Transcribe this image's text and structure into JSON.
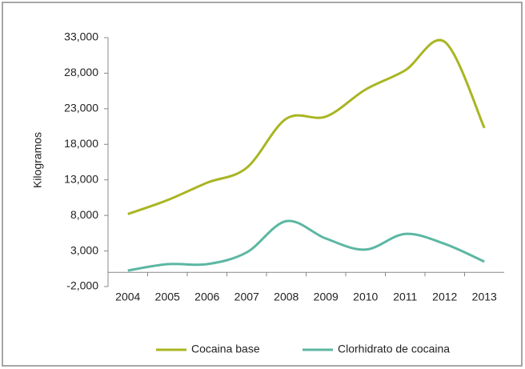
{
  "chart_data": {
    "type": "line",
    "y_label": "Kilogramos",
    "categories": [
      "2004",
      "2005",
      "2006",
      "2007",
      "2008",
      "2009",
      "2010",
      "2011",
      "2012",
      "2013"
    ],
    "series": [
      {
        "name": "Cocaina base",
        "color": "#a9b522",
        "values": [
          8200,
          10150,
          12600,
          14700,
          21600,
          21900,
          25700,
          28400,
          32400,
          20300
        ]
      },
      {
        "name": "Clorhidrato de cocaina",
        "color": "#5cb7a2",
        "values": [
          250,
          1150,
          1150,
          2800,
          7200,
          4750,
          3200,
          5400,
          4000,
          1500
        ]
      }
    ],
    "ylim": [
      -2000,
      33000
    ],
    "yticks": [
      {
        "value": -2000,
        "label": "-2,000"
      },
      {
        "value": 3000,
        "label": "3,000"
      },
      {
        "value": 8000,
        "label": "8,000"
      },
      {
        "value": 13000,
        "label": "13,000"
      },
      {
        "value": 18000,
        "label": "18,000"
      },
      {
        "value": 23000,
        "label": "23,000"
      },
      {
        "value": 28000,
        "label": "28,000"
      },
      {
        "value": 33000,
        "label": "33,000"
      }
    ],
    "legend": "bottom"
  }
}
